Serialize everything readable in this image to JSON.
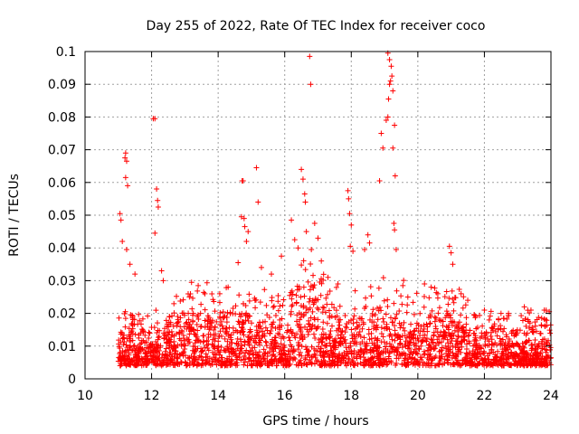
{
  "chart_data": {
    "type": "scatter",
    "title": "Day 255 of 2022, Rate Of TEC Index for receiver coco",
    "xlabel": "GPS time / hours",
    "ylabel": "ROTI / TECUs",
    "xlim": [
      10,
      24
    ],
    "ylim": [
      0,
      0.1
    ],
    "x_ticks": [
      10,
      12,
      14,
      16,
      18,
      20,
      22,
      24
    ],
    "y_ticks": [
      0,
      0.01,
      0.02,
      0.03,
      0.04,
      0.05,
      0.06,
      0.07,
      0.08,
      0.09,
      0.1
    ],
    "x_tick_labels": [
      "10",
      "12",
      "14",
      "16",
      "18",
      "20",
      "22",
      "24"
    ],
    "y_tick_labels": [
      "0",
      "0.01",
      "0.02",
      "0.03",
      "0.04",
      "0.05",
      "0.06",
      "0.07",
      "0.08",
      "0.09",
      "0.1"
    ],
    "grid": true,
    "marker": "+",
    "color": "#ff0000",
    "series": [
      {
        "name": "ROTI",
        "points": [
          [
            11.05,
            0.0505
          ],
          [
            11.08,
            0.0485
          ],
          [
            11.12,
            0.042
          ],
          [
            11.2,
            0.0675
          ],
          [
            11.22,
            0.069
          ],
          [
            11.25,
            0.0665
          ],
          [
            11.22,
            0.0615
          ],
          [
            11.28,
            0.059
          ],
          [
            11.25,
            0.0395
          ],
          [
            11.35,
            0.035
          ],
          [
            11.5,
            0.032
          ],
          [
            12.05,
            0.0795
          ],
          [
            12.1,
            0.0795
          ],
          [
            12.15,
            0.058
          ],
          [
            12.18,
            0.0545
          ],
          [
            12.2,
            0.0525
          ],
          [
            12.1,
            0.0445
          ],
          [
            12.3,
            0.033
          ],
          [
            12.35,
            0.03
          ],
          [
            13.2,
            0.0295
          ],
          [
            13.4,
            0.0285
          ],
          [
            13.6,
            0.026
          ],
          [
            14.3,
            0.028
          ],
          [
            14.6,
            0.0355
          ],
          [
            14.7,
            0.0495
          ],
          [
            14.72,
            0.0605
          ],
          [
            14.75,
            0.0605
          ],
          [
            14.78,
            0.049
          ],
          [
            14.8,
            0.0465
          ],
          [
            14.85,
            0.042
          ],
          [
            14.9,
            0.045
          ],
          [
            15.15,
            0.0645
          ],
          [
            15.2,
            0.054
          ],
          [
            15.3,
            0.034
          ],
          [
            15.6,
            0.032
          ],
          [
            15.9,
            0.0375
          ],
          [
            16.2,
            0.0485
          ],
          [
            16.3,
            0.0425
          ],
          [
            16.4,
            0.04
          ],
          [
            16.5,
            0.064
          ],
          [
            16.55,
            0.061
          ],
          [
            16.6,
            0.0565
          ],
          [
            16.62,
            0.054
          ],
          [
            16.65,
            0.045
          ],
          [
            16.75,
            0.0985
          ],
          [
            16.78,
            0.09
          ],
          [
            16.8,
            0.0395
          ],
          [
            16.9,
            0.0475
          ],
          [
            17.0,
            0.043
          ],
          [
            17.1,
            0.036
          ],
          [
            17.3,
            0.031
          ],
          [
            17.6,
            0.029
          ],
          [
            17.9,
            0.0575
          ],
          [
            17.92,
            0.055
          ],
          [
            17.95,
            0.0505
          ],
          [
            17.97,
            0.0405
          ],
          [
            18.0,
            0.047
          ],
          [
            18.05,
            0.039
          ],
          [
            18.4,
            0.0395
          ],
          [
            18.5,
            0.044
          ],
          [
            18.55,
            0.0415
          ],
          [
            18.85,
            0.0605
          ],
          [
            18.9,
            0.075
          ],
          [
            18.95,
            0.0705
          ],
          [
            19.05,
            0.079
          ],
          [
            19.1,
            0.08
          ],
          [
            19.12,
            0.0855
          ],
          [
            19.15,
            0.09
          ],
          [
            19.18,
            0.091
          ],
          [
            19.1,
            0.0995
          ],
          [
            19.15,
            0.0975
          ],
          [
            19.2,
            0.0955
          ],
          [
            19.22,
            0.0925
          ],
          [
            19.25,
            0.088
          ],
          [
            19.25,
            0.0705
          ],
          [
            19.3,
            0.0775
          ],
          [
            19.32,
            0.062
          ],
          [
            19.28,
            0.0475
          ],
          [
            19.3,
            0.0455
          ],
          [
            19.35,
            0.0395
          ],
          [
            19.55,
            0.0285
          ],
          [
            19.7,
            0.025
          ],
          [
            20.2,
            0.029
          ],
          [
            20.4,
            0.028
          ],
          [
            20.6,
            0.026
          ],
          [
            20.95,
            0.0405
          ],
          [
            21.0,
            0.0385
          ],
          [
            21.05,
            0.035
          ],
          [
            21.3,
            0.026
          ],
          [
            21.5,
            0.024
          ],
          [
            22.0,
            0.021
          ],
          [
            22.5,
            0.02
          ],
          [
            23.2,
            0.022
          ],
          [
            23.4,
            0.021
          ],
          [
            23.8,
            0.021
          ],
          [
            23.95,
            0.0205
          ]
        ]
      }
    ]
  }
}
